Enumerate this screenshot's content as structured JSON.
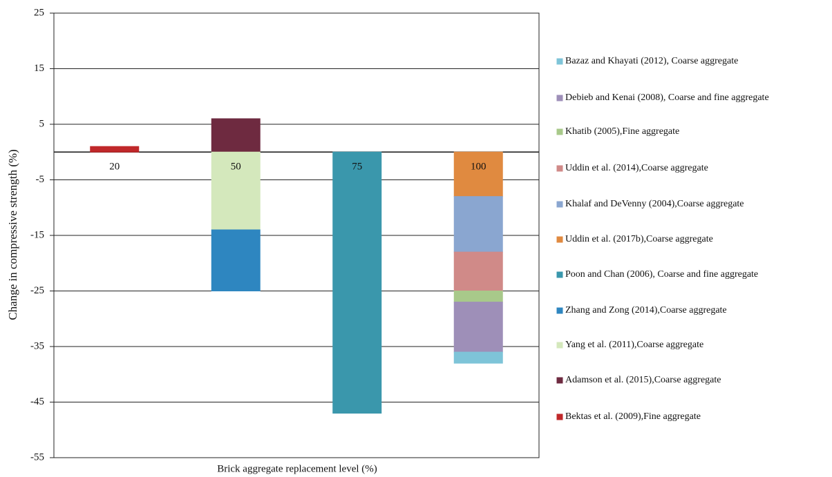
{
  "chart_data": {
    "type": "stacked_bar",
    "y_label": "Change in compressive strength (%)",
    "x_label": "Brick aggregate replacement level (%)",
    "categories": [
      "20",
      "50",
      "75",
      "100"
    ],
    "ylim": [
      -55,
      25
    ],
    "yticks": [
      25,
      15,
      5,
      -5,
      -15,
      -25,
      -35,
      -45,
      -55
    ],
    "grid": true,
    "legend": "right",
    "series": [
      {
        "name": "Bazaz and Khayati (2012), Coarse aggregate",
        "color": "#7ec4d8",
        "values": [
          null,
          null,
          null,
          -2
        ]
      },
      {
        "name": "Debieb and  Kenai (2008), Coarse and fine aggregate",
        "color": "#9e8fb8",
        "values": [
          null,
          null,
          null,
          -9
        ]
      },
      {
        "name": "Khatib (2005),Fine aggregate",
        "color": "#a8c98a",
        "values": [
          null,
          null,
          null,
          -2
        ]
      },
      {
        "name": "Uddin et al. (2014),Coarse aggregate",
        "color": "#d08a88",
        "values": [
          null,
          null,
          null,
          -7
        ]
      },
      {
        "name": "Khalaf and DeVenny (2004),Coarse aggregate",
        "color": "#8aa6d0",
        "values": [
          null,
          null,
          null,
          -10
        ]
      },
      {
        "name": "Uddin et al. (2017b),Coarse aggregate",
        "color": "#e08a40",
        "values": [
          null,
          null,
          null,
          -8
        ]
      },
      {
        "name": "Poon and Chan (2006), Coarse and fine aggregate",
        "color": "#3a97ac",
        "values": [
          null,
          null,
          -47,
          null
        ]
      },
      {
        "name": "Zhang and Zong (2014),Coarse aggregate",
        "color": "#2e86c0",
        "values": [
          null,
          -11,
          null,
          null
        ]
      },
      {
        "name": "Yang et al. (2011),Coarse aggregate",
        "color": "#d4e8bc",
        "values": [
          null,
          -14,
          null,
          null
        ]
      },
      {
        "name": "Adamson et al. (2015),Coarse aggregate",
        "color": "#6e2a40",
        "values": [
          null,
          6,
          null,
          null
        ]
      },
      {
        "name": "Bektas et al. (2009),Fine aggregate",
        "color": "#c0282a",
        "values": [
          1,
          null,
          null,
          null
        ]
      }
    ]
  }
}
